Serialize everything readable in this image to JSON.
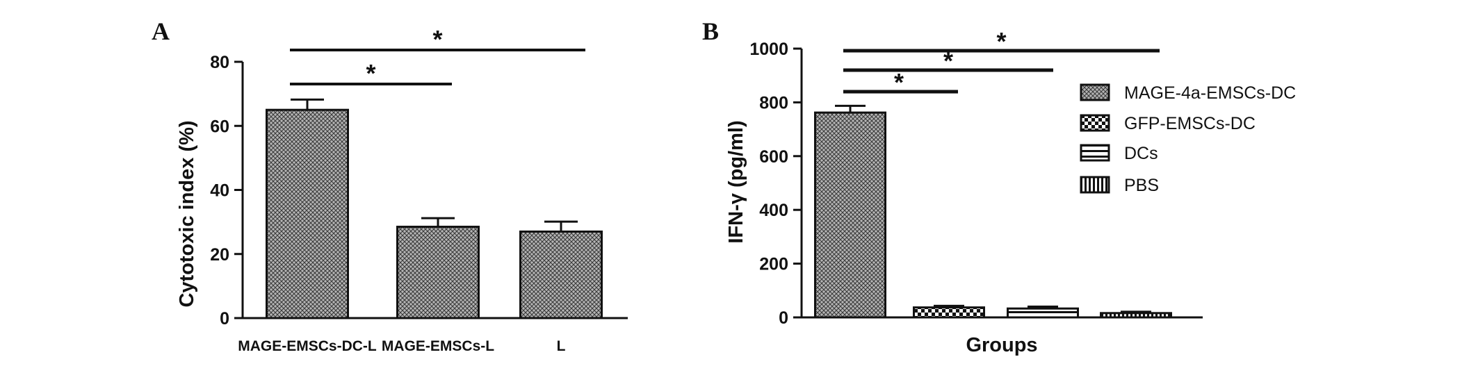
{
  "chart_data": [
    {
      "panel": "A",
      "type": "bar",
      "title": "",
      "xlabel": "",
      "ylabel": "Cytotoxic index (%)",
      "ylim": [
        0,
        80
      ],
      "yticks": [
        "0",
        "20",
        "40",
        "60",
        "80"
      ],
      "categories": [
        "MAGE-EMSCs-DC-L",
        "MAGE-EMSCs-L",
        "L"
      ],
      "values": [
        65,
        28.5,
        27
      ],
      "errors": [
        3.2,
        2.7,
        3.1
      ],
      "significance": [
        {
          "from": 0,
          "to": 1,
          "label": "*"
        },
        {
          "from": 0,
          "to": 2,
          "label": "*"
        }
      ],
      "grid": false,
      "bar_pattern": "crosshatch"
    },
    {
      "panel": "B",
      "type": "bar",
      "title": "",
      "xlabel": "Groups",
      "ylabel": "IFN-γ (pg/ml)",
      "ylim": [
        0,
        1000
      ],
      "yticks": [
        "0",
        "200",
        "400",
        "600",
        "800",
        "1000"
      ],
      "series": [
        {
          "name": "MAGE-4a-EMSCs-DC",
          "value": 762,
          "error": 25,
          "pattern": "crosshatch"
        },
        {
          "name": "GFP-EMSCs-DC",
          "value": 37,
          "error": 6,
          "pattern": "checker"
        },
        {
          "name": "DCs",
          "value": 33,
          "error": 7,
          "pattern": "horizontal"
        },
        {
          "name": "PBS",
          "value": 16,
          "error": 5,
          "pattern": "vertical"
        }
      ],
      "significance": [
        {
          "from": 0,
          "to": 1,
          "label": "*"
        },
        {
          "from": 0,
          "to": 2,
          "label": "*"
        },
        {
          "from": 0,
          "to": 3,
          "label": "*"
        }
      ],
      "legend": "right",
      "grid": false
    }
  ]
}
